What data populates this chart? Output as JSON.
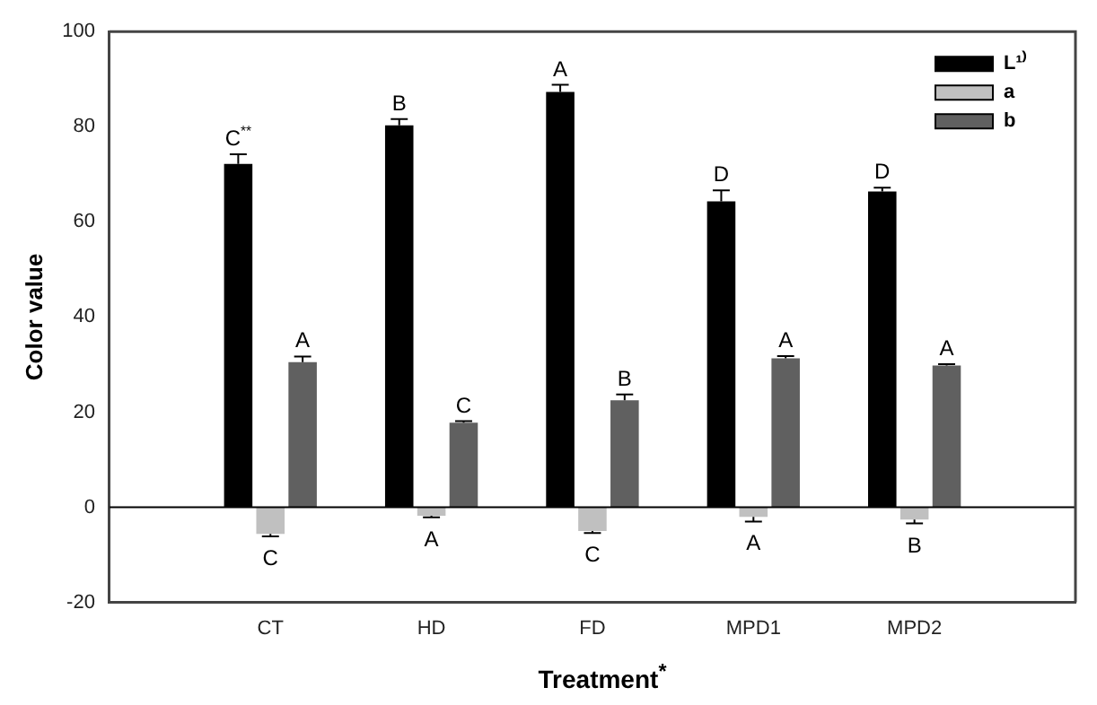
{
  "chart_data": {
    "type": "bar",
    "ylabel": "Color value",
    "xlabel": "Treatment$^{*}$",
    "categories": [
      "CT",
      "HD",
      "FD",
      "MPD1",
      "MPD2"
    ],
    "series": [
      {
        "name": "L¹⁾",
        "color": "#000000",
        "values": [
          72.2,
          80.3,
          87.3,
          64.3,
          66.4
        ],
        "errors": [
          2,
          1.3,
          1.5,
          2.3,
          0.8
        ]
      },
      {
        "name": "a",
        "color": "#c0c0c0",
        "values": [
          -5.6,
          -1.8,
          -5.0,
          -2.0,
          -2.6
        ],
        "errors": [
          0.5,
          0.3,
          0.4,
          1,
          0.8
        ]
      },
      {
        "name": "b",
        "color": "#606060",
        "values": [
          30.5,
          17.8,
          22.5,
          31.3,
          29.8
        ],
        "errors": [
          1.2,
          0.3,
          1.2,
          0.5,
          0.3
        ]
      }
    ],
    "ylim": [
      -20,
      100
    ],
    "yticks": [
      -20,
      0,
      20,
      40,
      60,
      80,
      100
    ],
    "grid": false,
    "legend": "top right",
    "ref_lines": [
      {
        "axis": "y",
        "value": 0,
        "color": "#000000"
      }
    ],
    "annotations": [
      "C$^{**}$",
      "C",
      "A",
      "B",
      "A",
      "C",
      "A",
      "C",
      "B",
      "D",
      "A",
      "A",
      "D",
      "B",
      "A"
    ]
  }
}
